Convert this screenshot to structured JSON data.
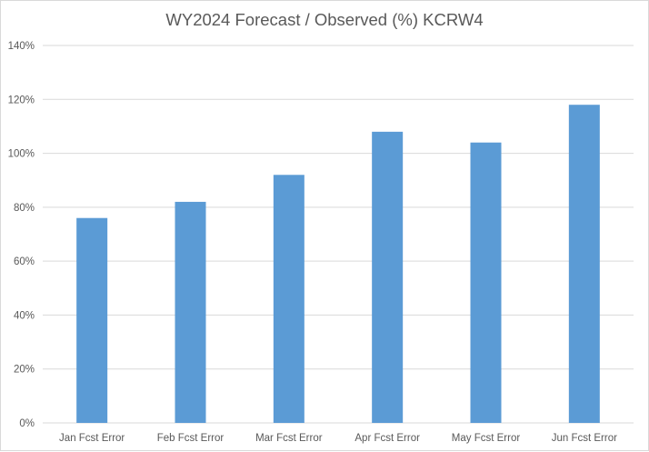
{
  "chart_data": {
    "type": "bar",
    "title": "WY2024 Forecast / Observed (%) KCRW4",
    "xlabel": "",
    "ylabel": "",
    "categories": [
      "Jan Fcst Error",
      "Feb Fcst Error",
      "Mar Fcst Error",
      "Apr Fcst Error",
      "May Fcst Error",
      "Jun Fcst Error"
    ],
    "values": [
      76,
      82,
      92,
      108,
      104,
      118
    ],
    "ylim": [
      0,
      140
    ],
    "yticks": [
      "0%",
      "20%",
      "40%",
      "60%",
      "80%",
      "100%",
      "120%",
      "140%"
    ],
    "grid": true,
    "legend": "none",
    "colors": {
      "bar": "#5b9bd5",
      "grid": "#d9d9d9",
      "text": "#595959"
    }
  }
}
